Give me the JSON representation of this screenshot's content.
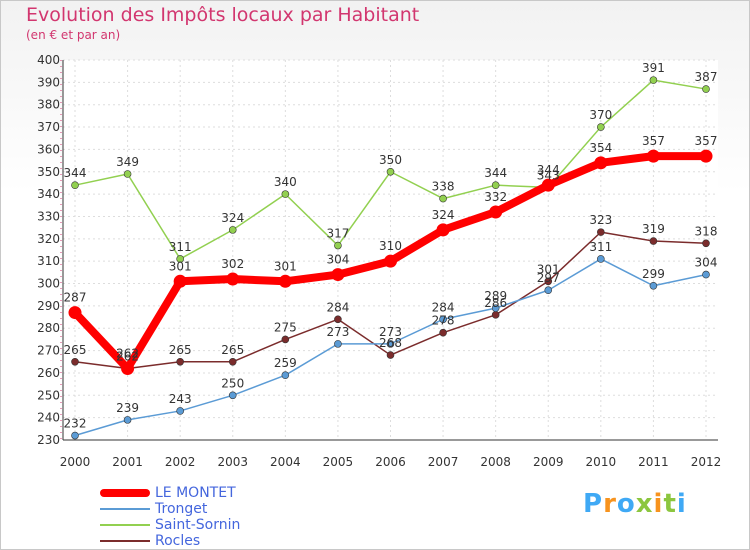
{
  "title": "Evolution des Impôts locaux par Habitant",
  "subtitle": "(en € et par an)",
  "logo": "Proxiti",
  "chart_data": {
    "type": "line",
    "x": [
      "2000",
      "2001",
      "2002",
      "2003",
      "2004",
      "2005",
      "2006",
      "2007",
      "2008",
      "2009",
      "2010",
      "2011",
      "2012"
    ],
    "ylim": [
      230,
      400
    ],
    "yticks": [
      230,
      240,
      250,
      260,
      270,
      280,
      290,
      300,
      310,
      320,
      330,
      340,
      350,
      360,
      370,
      380,
      390,
      400
    ],
    "grid": true,
    "series": [
      {
        "name": "LE MONTET",
        "color": "#ff0000",
        "values": [
          287,
          262,
          301,
          302,
          301,
          304,
          310,
          324,
          332,
          344,
          354,
          357,
          357
        ]
      },
      {
        "name": "Tronget",
        "color": "#5b9bd5",
        "values": [
          232,
          239,
          243,
          250,
          259,
          273,
          273,
          284,
          289,
          297,
          311,
          299,
          304
        ]
      },
      {
        "name": "Saint-Sornin",
        "color": "#92d050",
        "values": [
          344,
          349,
          311,
          324,
          340,
          317,
          350,
          338,
          344,
          343,
          370,
          391,
          387
        ]
      },
      {
        "name": "Rocles",
        "color": "#7b2c2c",
        "values": [
          265,
          262,
          265,
          265,
          275,
          284,
          268,
          278,
          286,
          301,
          323,
          319,
          318
        ]
      }
    ]
  }
}
